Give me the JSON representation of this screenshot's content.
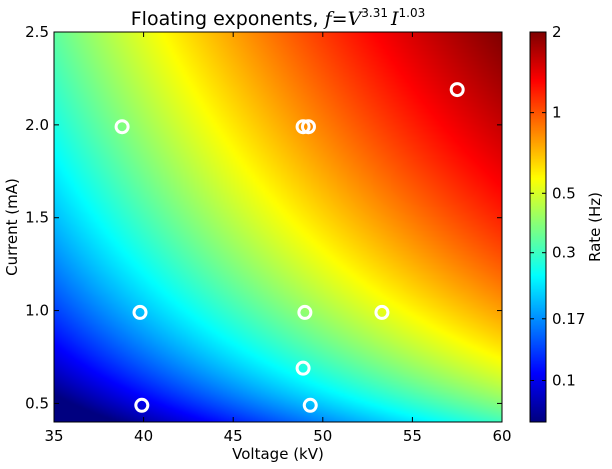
{
  "chart_data": {
    "type": "heatmap",
    "title": "Floating exponents, ",
    "formula": {
      "lhs": "f",
      "eq": "=",
      "v_var": "V",
      "v_exp": "3.31",
      "i_var": "I",
      "i_exp": "1.03"
    },
    "xlabel": "Voltage (kV)",
    "ylabel": "Current (mA)",
    "colorbar_label": "Rate (Hz)",
    "xlim": [
      35,
      60
    ],
    "ylim": [
      0.4,
      2.5
    ],
    "x_ticks": [
      35,
      40,
      45,
      50,
      55,
      60
    ],
    "x_tick_labels": [
      "35",
      "40",
      "45",
      "50",
      "55",
      "60"
    ],
    "y_ticks": [
      0.5,
      1.0,
      1.5,
      2.0,
      2.5
    ],
    "y_tick_labels": [
      "0.5",
      "1.0",
      "1.5",
      "2.0",
      "2.5"
    ],
    "colorbar_range": [
      0.07,
      2.0
    ],
    "colorbar_scale": "log",
    "colorbar_ticks": [
      0.1,
      0.17,
      0.3,
      0.5,
      1,
      2
    ],
    "colorbar_tick_labels": [
      "0.1",
      "0.17",
      "0.3",
      "0.5",
      "1",
      "2"
    ],
    "colormap": "jet",
    "model": {
      "v_exponent": 3.31,
      "i_exponent": 1.03
    },
    "points": [
      {
        "x": 38.8,
        "y": 1.99,
        "color": "#ffffff"
      },
      {
        "x": 48.9,
        "y": 1.99,
        "color": "#ffffff"
      },
      {
        "x": 49.2,
        "y": 1.99,
        "color": "#ffffff"
      },
      {
        "x": 57.5,
        "y": 2.19,
        "color": "#ffffff"
      },
      {
        "x": 39.8,
        "y": 0.99,
        "color": "#ffffff"
      },
      {
        "x": 49.0,
        "y": 0.99,
        "color": "#ffffff"
      },
      {
        "x": 53.3,
        "y": 0.99,
        "color": "#ffffff"
      },
      {
        "x": 48.9,
        "y": 0.69,
        "color": "#ffffff"
      },
      {
        "x": 39.9,
        "y": 0.49,
        "color": "#ffffff"
      },
      {
        "x": 49.3,
        "y": 0.49,
        "color": "#ffffff"
      }
    ]
  }
}
